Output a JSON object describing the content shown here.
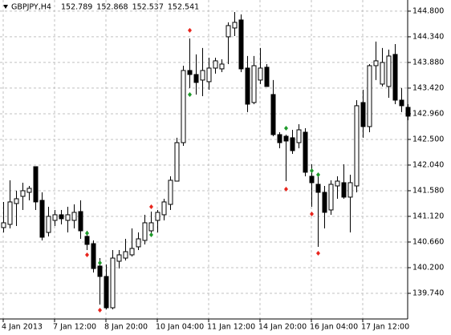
{
  "chart_data": {
    "type": "candlestick",
    "symbol": "GBPJPY,H4",
    "header_values": [
      152.789,
      152.868,
      152.537,
      152.541
    ],
    "categories": [
      "4 Jan 2013",
      null,
      null,
      null,
      null,
      null,
      null,
      null,
      "7 Jan 12:00",
      null,
      null,
      null,
      null,
      null,
      null,
      null,
      "8 Jan 20:00",
      null,
      null,
      null,
      null,
      null,
      null,
      null,
      "10 Jan 04:00",
      null,
      null,
      null,
      null,
      null,
      null,
      null,
      "11 Jan 12:00",
      null,
      null,
      null,
      null,
      null,
      null,
      null,
      "14 Jan 20:00",
      null,
      null,
      null,
      null,
      null,
      null,
      null,
      "16 Jan 04:00",
      null,
      null,
      null,
      null,
      null,
      null,
      null,
      "17 Jan 12:00",
      null,
      null,
      null,
      null,
      null,
      null,
      null
    ],
    "open": [
      140.919,
      140.976,
      141.35,
      141.479,
      141.551,
      142.011,
      141.407,
      140.832,
      141.048,
      141.149,
      141.048,
      141.048,
      141.206,
      140.761,
      140.631,
      140.229,
      140.042,
      139.481,
      140.315,
      140.372,
      140.43,
      140.574,
      140.689,
      140.861,
      141.048,
      141.149,
      141.335,
      141.752,
      142.442,
      143.736,
      143.664,
      143.564,
      143.535,
      143.779,
      143.765,
      144.34,
      144.498,
      144.642,
      143.779,
      143.161,
      143.564,
      143.794,
      143.305,
      142.586,
      142.557,
      142.529,
      142.442,
      142.629,
      141.839,
      141.695,
      141.551,
      141.235,
      141.666,
      141.724,
      141.465,
      141.666,
      143.161,
      142.73,
      143.822,
      143.492,
      143.449,
      144.024,
      143.204,
      143.075
    ],
    "high": [
      141.379,
      141.767,
      141.58,
      141.724,
      141.666,
      142.011,
      141.551,
      141.292,
      141.235,
      141.235,
      141.292,
      141.335,
      141.407,
      140.861,
      140.689,
      140.372,
      140.257,
      140.516,
      140.516,
      140.717,
      140.904,
      140.832,
      141.149,
      141.206,
      141.235,
      141.436,
      141.839,
      142.529,
      143.822,
      144.311,
      144.024,
      144.139,
      143.966,
      143.966,
      143.937,
      144.599,
      144.785,
      144.742,
      143.995,
      143.995,
      144.139,
      143.851,
      143.564,
      142.629,
      142.586,
      142.672,
      142.773,
      142.701,
      142.054,
      141.867,
      141.666,
      141.767,
      141.839,
      142.054,
      141.867,
      143.204,
      143.391,
      143.851,
      144.254,
      144.139,
      144.11,
      144.21,
      143.42,
      143.132
    ],
    "low": [
      140.832,
      140.904,
      140.947,
      141.235,
      141.407,
      141.235,
      140.689,
      140.761,
      140.947,
      140.976,
      140.832,
      140.904,
      140.717,
      140.516,
      140.114,
      139.539,
      139.452,
      139.452,
      140.185,
      140.329,
      140.401,
      140.516,
      140.617,
      140.761,
      140.832,
      141.048,
      141.235,
      141.752,
      142.385,
      143.42,
      143.305,
      143.276,
      143.391,
      143.679,
      143.707,
      143.851,
      144.354,
      143.707,
      142.989,
      143.132,
      143.492,
      143.449,
      142.557,
      142.342,
      141.752,
      142.241,
      142.342,
      141.839,
      141.292,
      140.574,
      140.904,
      141.149,
      141.436,
      141.436,
      140.832,
      141.551,
      142.529,
      142.629,
      143.564,
      143.449,
      143.247,
      143.132,
      142.989,
      142.845
    ],
    "close": [
      141.005,
      141.379,
      141.436,
      141.58,
      141.623,
      141.379,
      140.746,
      141.12,
      141.149,
      141.077,
      141.149,
      141.192,
      140.861,
      140.617,
      140.185,
      140.042,
      139.481,
      140.372,
      140.43,
      140.487,
      140.545,
      140.717,
      141.005,
      141.005,
      141.192,
      141.379,
      141.767,
      142.442,
      143.736,
      143.664,
      143.521,
      143.736,
      143.779,
      143.909,
      143.851,
      144.541,
      144.599,
      143.765,
      143.132,
      143.822,
      143.779,
      143.449,
      142.586,
      142.442,
      142.471,
      142.299,
      142.672,
      141.911,
      141.724,
      141.551,
      141.192,
      141.695,
      141.752,
      141.465,
      141.724,
      143.104,
      142.73,
      143.822,
      143.909,
      143.88,
      143.995,
      143.204,
      143.104,
      142.917
    ],
    "markers": [
      {
        "color": "#e8241c",
        "values": [
          null,
          null,
          null,
          null,
          null,
          null,
          null,
          null,
          null,
          null,
          null,
          null,
          null,
          140.43,
          null,
          139.438,
          null,
          null,
          null,
          null,
          null,
          null,
          null,
          141.292,
          null,
          null,
          null,
          null,
          null,
          144.455,
          null,
          null,
          null,
          null,
          null,
          null,
          null,
          null,
          null,
          null,
          null,
          null,
          null,
          null,
          141.609,
          null,
          null,
          null,
          141.163,
          140.459,
          null,
          null,
          null,
          null,
          null,
          null,
          null,
          null,
          null,
          null,
          null,
          null,
          null,
          null
        ]
      },
      {
        "color": "#1e9a2a",
        "values": [
          null,
          null,
          null,
          null,
          null,
          null,
          null,
          null,
          null,
          null,
          null,
          null,
          null,
          140.818,
          null,
          140.286,
          null,
          null,
          null,
          null,
          null,
          null,
          null,
          140.789,
          null,
          null,
          null,
          null,
          null,
          143.305,
          null,
          null,
          null,
          null,
          null,
          null,
          null,
          null,
          null,
          null,
          null,
          null,
          null,
          null,
          142.701,
          null,
          null,
          null,
          141.939,
          141.867,
          null,
          null,
          null,
          null,
          null,
          null,
          null,
          null,
          null,
          null,
          null,
          null,
          null,
          null
        ]
      }
    ],
    "ylim": [
      139.28,
      145.0
    ],
    "yticks": [
      {
        "value": 144.8,
        "label": "144.800"
      },
      {
        "value": 144.34,
        "label": "144.340"
      },
      {
        "value": 143.88,
        "label": "143.880"
      },
      {
        "value": 143.42,
        "label": "143.420"
      },
      {
        "value": 142.96,
        "label": "142.960"
      },
      {
        "value": 142.5,
        "label": "142.500"
      },
      {
        "value": 142.04,
        "label": "142.040"
      },
      {
        "value": 141.58,
        "label": "141.580"
      },
      {
        "value": 141.12,
        "label": "141.120"
      },
      {
        "value": 140.66,
        "label": "140.660"
      },
      {
        "value": 140.2,
        "label": "140.200"
      },
      {
        "value": 139.74,
        "label": "139.740"
      }
    ],
    "grid": true,
    "up_color": "#ffffff",
    "down_color": "#000000"
  }
}
